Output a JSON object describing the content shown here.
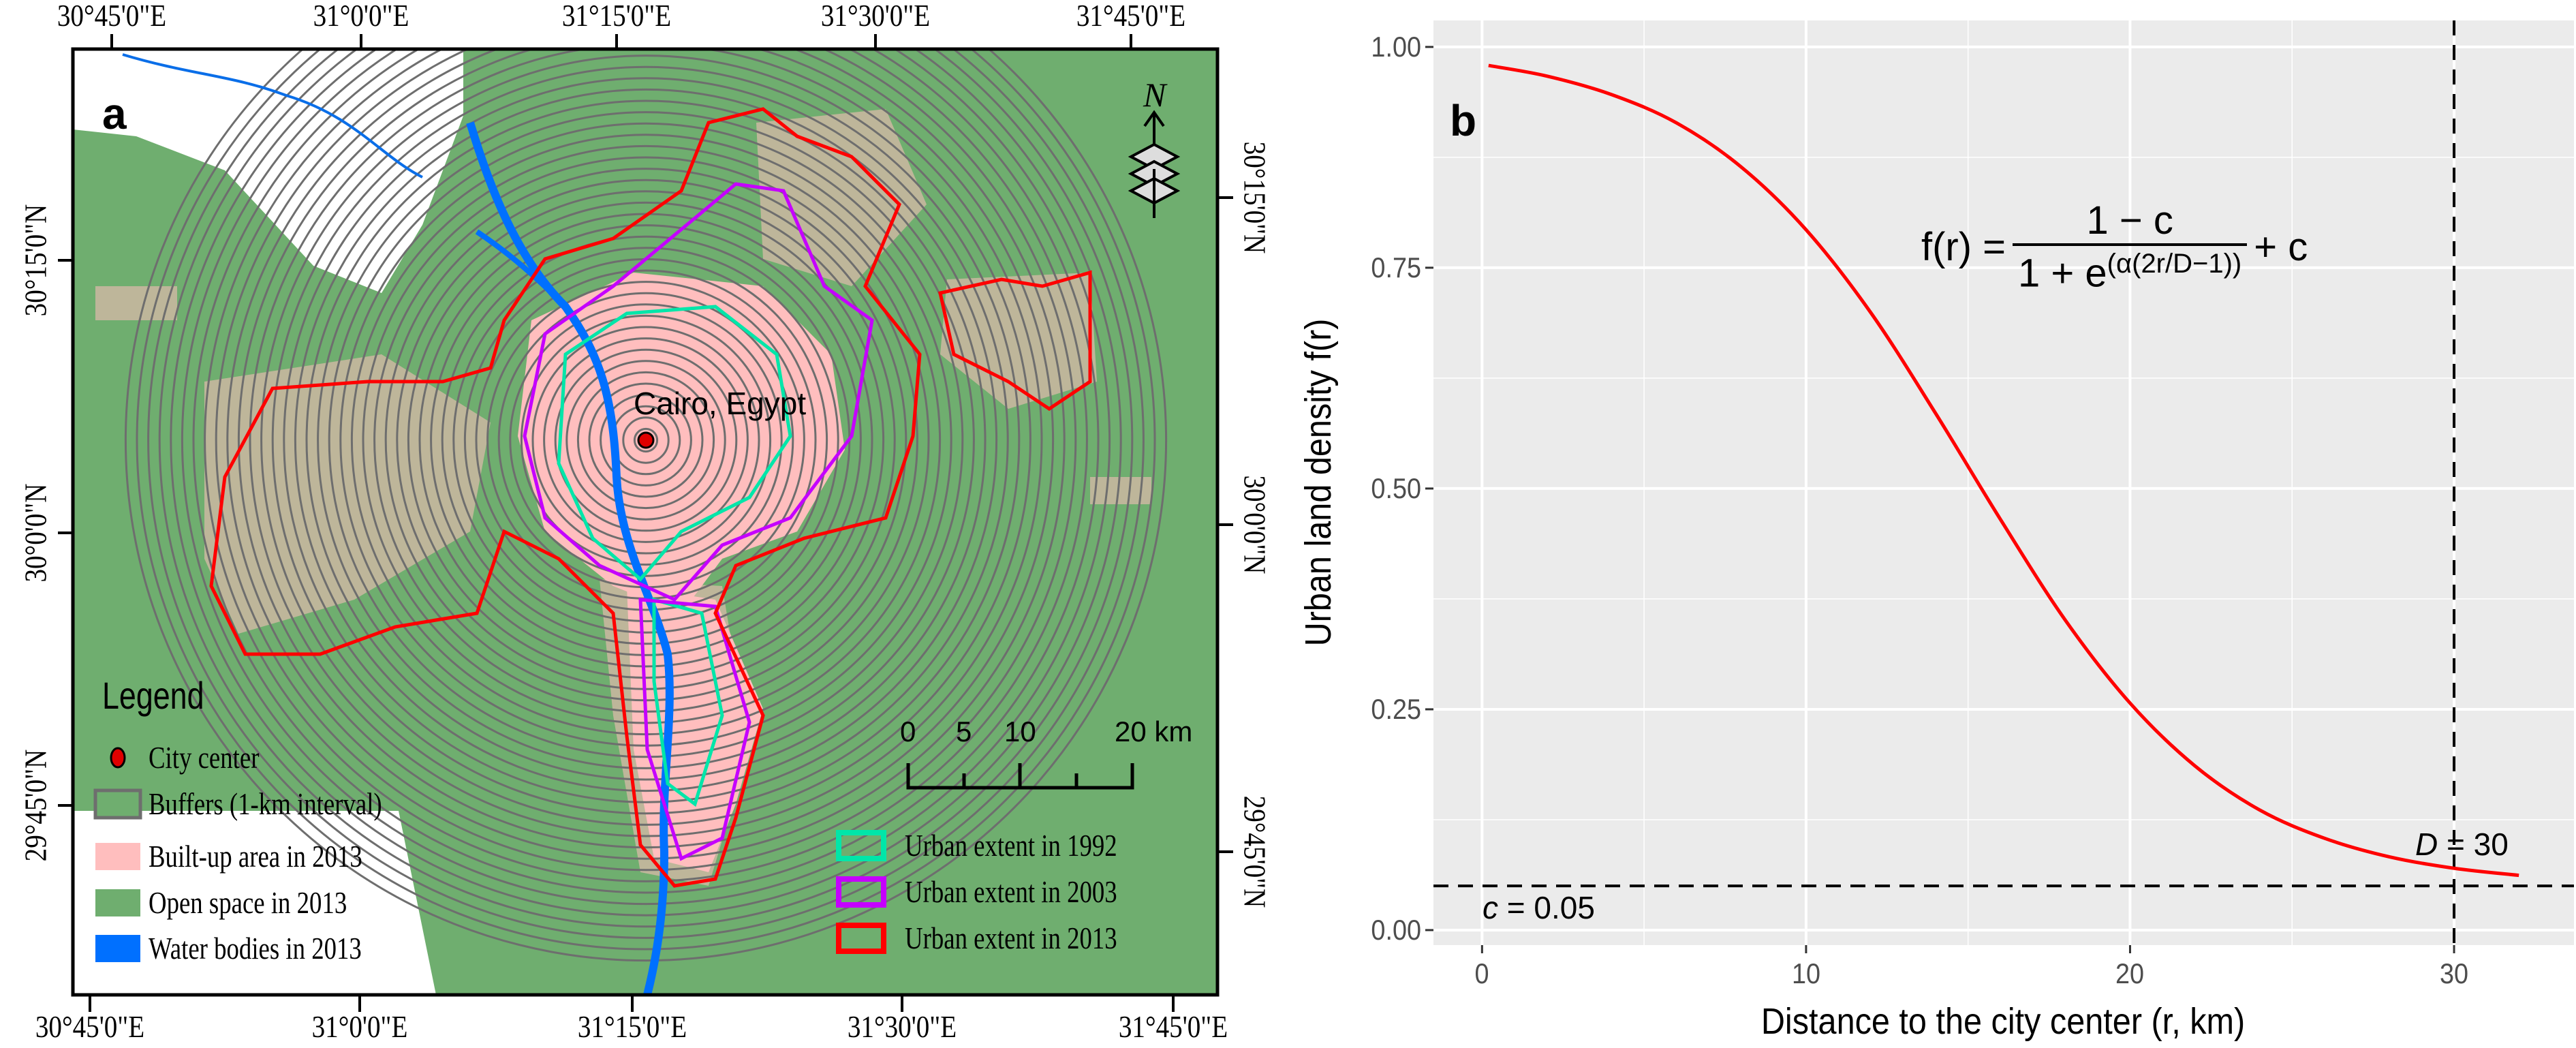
{
  "panel_a": {
    "label": "a",
    "city_label": "Cairo, Egypt",
    "north_label": "N",
    "top_ticks": [
      "30°45'0\"E",
      "31°0'0\"E",
      "31°15'0\"E",
      "31°30'0\"E",
      "31°45'0\"E"
    ],
    "bottom_ticks": [
      "30°45'0\"E",
      "31°0'0\"E",
      "31°15'0\"E",
      "31°30'0\"E",
      "31°45'0\"E"
    ],
    "left_ticks": [
      "30°15'0\"N",
      "30°0'0\"N",
      "29°45'0\"N"
    ],
    "right_ticks": [
      "30°15'0\"N",
      "30°0'0\"N",
      "29°45'0\"N"
    ],
    "legend": {
      "title": "Legend",
      "items": [
        {
          "label": "City center",
          "color": "#e00000"
        },
        {
          "label": "Buffers (1-km interval)",
          "color": "#6e6e6e"
        },
        {
          "label": "Built-up area in 2013",
          "color": "#ffbebe"
        },
        {
          "label": "Open space in 2013",
          "color": "#6fae6f"
        },
        {
          "label": "Water bodies in 2013",
          "color": "#0070ff"
        }
      ],
      "extent_items": [
        {
          "label": "Urban extent in 1992",
          "color": "#00e6a9"
        },
        {
          "label": "Urban extent in 2003",
          "color": "#c500ff"
        },
        {
          "label": "Urban extent in 2013",
          "color": "#ff0000"
        }
      ]
    },
    "scale_bar": {
      "labels": [
        "0",
        "5",
        "10",
        "20 km"
      ]
    }
  },
  "chart_data": {
    "type": "line",
    "panel_label": "b",
    "xlabel": "Distance to the city center (r, km)",
    "ylabel": "Urban land density f(r)",
    "xlim": [
      -1.5,
      33.7
    ],
    "ylim": [
      -0.017,
      1.03
    ],
    "x_ticks": [
      0,
      10,
      20,
      30
    ],
    "x_tick_labels": [
      "0",
      "10",
      "20",
      "30"
    ],
    "y_ticks": [
      0,
      0.25,
      0.5,
      0.75,
      1.0
    ],
    "y_tick_labels": [
      "0.00",
      "0.25",
      "0.50",
      "0.75",
      "1.00"
    ],
    "grid": true,
    "series": [
      {
        "color": "#ff0000",
        "x": [
          0.2,
          2,
          4,
          6,
          8,
          10,
          12,
          14,
          16,
          18,
          20,
          22,
          24,
          26,
          28,
          30,
          32
        ],
        "y": [
          0.979,
          0.967,
          0.946,
          0.914,
          0.864,
          0.793,
          0.699,
          0.585,
          0.465,
          0.351,
          0.257,
          0.186,
          0.136,
          0.104,
          0.083,
          0.07,
          0.062
        ]
      }
    ],
    "reference_lines": [
      {
        "orientation": "vertical",
        "value": 30,
        "label_italic": "D",
        "label_rest": " = 30"
      },
      {
        "orientation": "horizontal",
        "value": 0.05,
        "label_italic": "c",
        "label_rest": " = 0.05"
      }
    ],
    "equation": {
      "lhs": "f(r) =",
      "numerator": "1 − c",
      "denominator_base": "1 + e",
      "denominator_exponent": "(α(2r/D−1))",
      "tail": "+ c"
    }
  }
}
